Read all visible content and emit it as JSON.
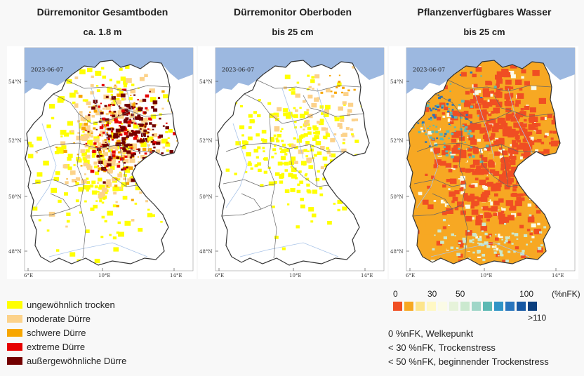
{
  "panels": [
    {
      "title": "Dürremonitor Gesamtboden",
      "subtitle": "ca. 1.8 m",
      "date": "2023-06-07"
    },
    {
      "title": "Dürremonitor Oberboden",
      "subtitle": "bis 25 cm",
      "date": "2023-06-07"
    },
    {
      "title": "Pflanzenverfügbares Wasser",
      "subtitle": "bis 25 cm",
      "date": "2023-06-07"
    }
  ],
  "axes": {
    "lat_labels": [
      "54°N",
      "52°N",
      "50°N",
      "48°N"
    ],
    "lon_labels": [
      "6°E",
      "10°E",
      "14°E"
    ]
  },
  "drought_legend": [
    {
      "label": "ungewöhnlich trocken",
      "color": "#ffff00"
    },
    {
      "label": "moderate Dürre",
      "color": "#fcd28a"
    },
    {
      "label": "schwere Dürre",
      "color": "#f7a600"
    },
    {
      "label": "extreme Dürre",
      "color": "#e60000"
    },
    {
      "label": "außergewöhnliche Dürre",
      "color": "#730000"
    }
  ],
  "water_scale": {
    "ticks": [
      "0",
      "30",
      "50",
      "100",
      "(%nFK)"
    ],
    "overflow_label": ">110",
    "colors": [
      "#f04e23",
      "#f7a823",
      "#fde58c",
      "#fff8c4",
      "#fbfbe6",
      "#e6f3da",
      "#cbe9cf",
      "#9fd6c8",
      "#5cb9b3",
      "#2f94c6",
      "#2774bd",
      "#1557a3",
      "#0b3f7e"
    ]
  },
  "notes": [
    "0 %nFK, Welkepunkt",
    "< 30 %nFK, Trockenstress",
    "< 50 %nFK, beginnender Trockenstress"
  ],
  "colors": {
    "sea": "#9cb8e0",
    "land": "#ffffff",
    "border": "#333333",
    "river": "#a9c4e8"
  }
}
